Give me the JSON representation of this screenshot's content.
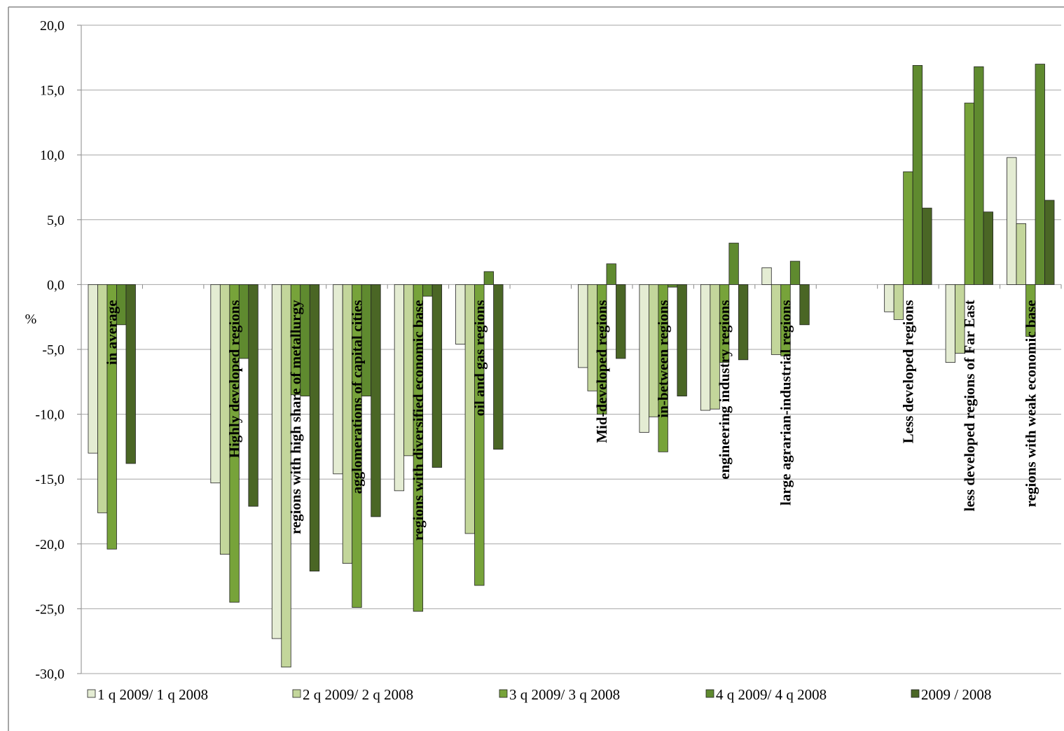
{
  "chart_data": {
    "type": "bar",
    "y_label": "%",
    "categories": [
      "in average",
      null,
      "Highly developed regions",
      "regions with high share of metallurgy",
      "agglomerations of capital cities",
      "regions with diversified economic base",
      "oil and gas regions",
      null,
      "Mid-developed regions",
      "in-between regions",
      "engineering industry regions",
      "large agrarian-industrial regions",
      null,
      "Less developed regions",
      "less developed regions of Far East",
      "regions with weak economic base"
    ],
    "series": [
      {
        "name": "1 q 2009/ 1 q 2008",
        "color": "#e4ecd3",
        "values": [
          -13.0,
          null,
          -15.3,
          -27.3,
          -14.6,
          -15.9,
          -4.6,
          null,
          -6.4,
          -11.4,
          -9.7,
          1.3,
          null,
          -2.1,
          -6.0,
          9.8
        ]
      },
      {
        "name": "2 q 2009/ 2 q 2008",
        "color": "#c3d69b",
        "values": [
          -17.6,
          null,
          -20.8,
          -29.5,
          -21.5,
          -13.2,
          -19.2,
          null,
          -8.2,
          -10.2,
          -9.6,
          -5.4,
          null,
          -2.7,
          -5.3,
          4.7
        ]
      },
      {
        "name": "3 q 2009/ 3 q 2008",
        "color": "#77a33a",
        "values": [
          -20.4,
          null,
          -24.5,
          -8.5,
          -24.9,
          -25.2,
          -23.2,
          null,
          -10.0,
          -12.9,
          -6.0,
          -5.5,
          null,
          8.7,
          14.0,
          -4.0
        ]
      },
      {
        "name": "4 q 2009/ 4 q 2008",
        "color": "#5f8a2f",
        "values": [
          -3.1,
          null,
          -5.7,
          -8.6,
          -8.6,
          -0.9,
          1.0,
          null,
          1.6,
          -0.2,
          3.2,
          1.8,
          null,
          16.9,
          16.8,
          17.0
        ]
      },
      {
        "name": "2009 / 2008",
        "color": "#4a6625",
        "values": [
          -13.8,
          null,
          -17.1,
          -22.1,
          -17.9,
          -14.1,
          -12.7,
          null,
          -5.7,
          -8.6,
          -5.8,
          -3.1,
          null,
          5.9,
          5.6,
          6.5
        ]
      }
    ],
    "ylim": [
      -30,
      20
    ],
    "yticks": [
      {
        "value": -30,
        "label": "-30,0"
      },
      {
        "value": -25,
        "label": "-25,0"
      },
      {
        "value": -20,
        "label": "-20,0"
      },
      {
        "value": -15,
        "label": "-15,0"
      },
      {
        "value": -10,
        "label": "-10,0"
      },
      {
        "value": -5,
        "label": "-5,0"
      },
      {
        "value": 0,
        "label": "0,0"
      },
      {
        "value": 5,
        "label": "5,0"
      },
      {
        "value": 10,
        "label": "10,0"
      },
      {
        "value": 15,
        "label": "15,0"
      },
      {
        "value": 20,
        "label": "20,0"
      }
    ],
    "grid": true,
    "legend": "bottom"
  }
}
